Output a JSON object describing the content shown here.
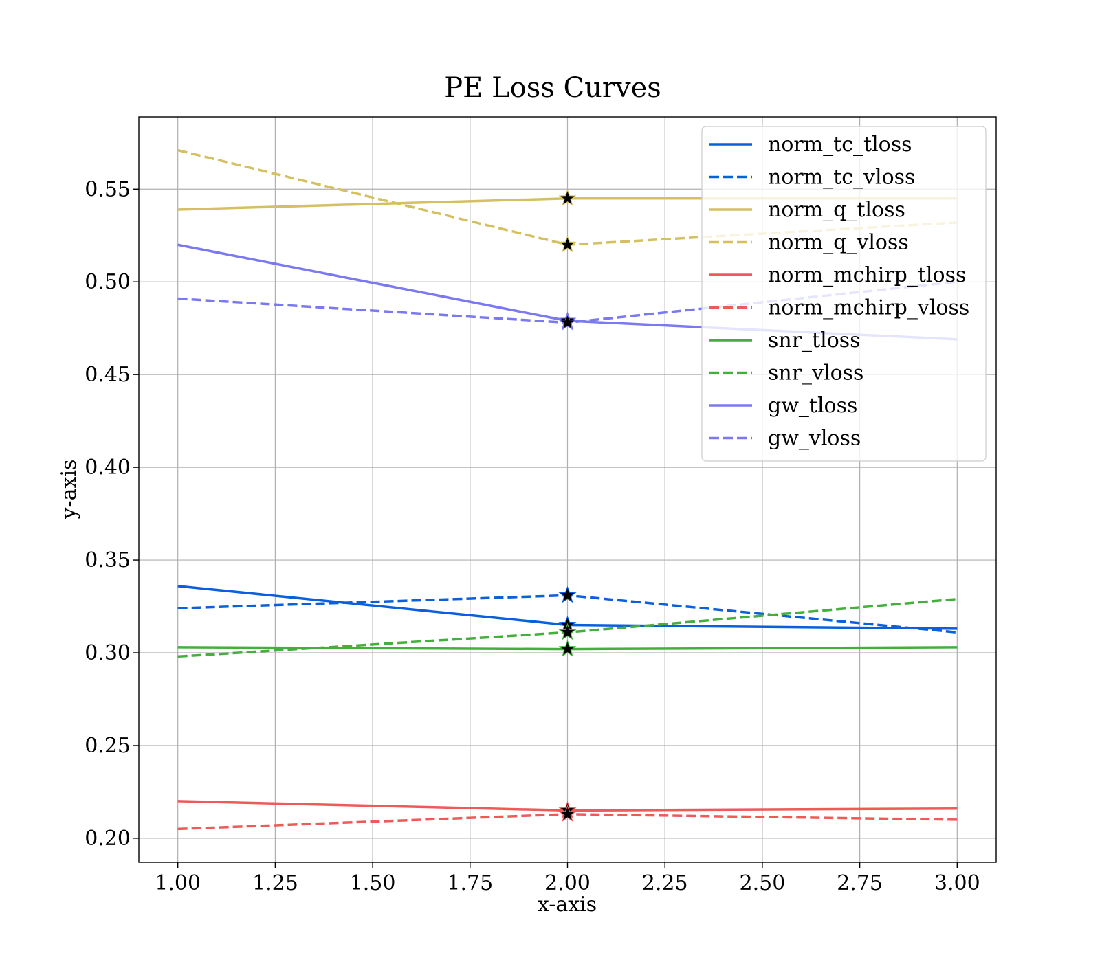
{
  "chart_data": {
    "type": "line",
    "title": "PE Loss Curves",
    "xlabel": "x-axis",
    "ylabel": "y-axis",
    "xlim": [
      0.9,
      3.1
    ],
    "ylim": [
      0.187,
      0.589
    ],
    "xticks": [
      "1.00",
      "1.25",
      "1.50",
      "1.75",
      "2.00",
      "2.25",
      "2.50",
      "2.75",
      "3.00"
    ],
    "yticks": [
      "0.20",
      "0.25",
      "0.30",
      "0.35",
      "0.40",
      "0.45",
      "0.50",
      "0.55"
    ],
    "grid": true,
    "legend_position": "upper right",
    "x": [
      1,
      2,
      3
    ],
    "series": [
      {
        "name": "norm_tc_tloss",
        "values": [
          0.336,
          0.315,
          0.313
        ],
        "color": "#0a5fdc",
        "style": "solid"
      },
      {
        "name": "norm_tc_vloss",
        "values": [
          0.324,
          0.331,
          0.311
        ],
        "color": "#0a5fdc",
        "style": "dashed"
      },
      {
        "name": "norm_q_tloss",
        "values": [
          0.539,
          0.545,
          0.545
        ],
        "color": "#d4c060",
        "style": "solid"
      },
      {
        "name": "norm_q_vloss",
        "values": [
          0.571,
          0.52,
          0.532
        ],
        "color": "#d4c060",
        "style": "dashed"
      },
      {
        "name": "norm_mchirp_tloss",
        "values": [
          0.22,
          0.215,
          0.216
        ],
        "color": "#ed5a57",
        "style": "solid"
      },
      {
        "name": "norm_mchirp_vloss",
        "values": [
          0.205,
          0.213,
          0.21
        ],
        "color": "#ed5a57",
        "style": "dashed"
      },
      {
        "name": "snr_tloss",
        "values": [
          0.303,
          0.302,
          0.303
        ],
        "color": "#44af3c",
        "style": "solid"
      },
      {
        "name": "snr_vloss",
        "values": [
          0.298,
          0.311,
          0.329
        ],
        "color": "#44af3c",
        "style": "dashed"
      },
      {
        "name": "gw_tloss",
        "values": [
          0.52,
          0.479,
          0.469
        ],
        "color": "#7b79f0",
        "style": "solid"
      },
      {
        "name": "gw_vloss",
        "values": [
          0.491,
          0.478,
          0.5
        ],
        "color": "#7b79f0",
        "style": "dashed"
      }
    ],
    "markers": {
      "shape": "star",
      "at_x": 2,
      "color": "#000000"
    }
  }
}
